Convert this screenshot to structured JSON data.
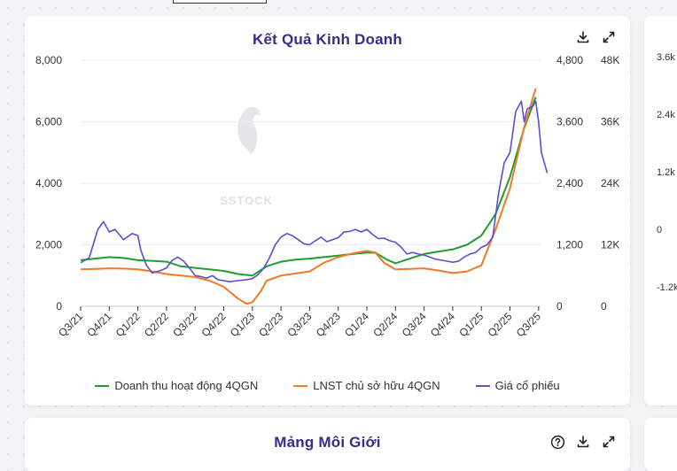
{
  "charts": {
    "main_title": "Kết Quả Kinh Doanh",
    "bottom_title": "Mảng Môi Giới"
  },
  "watermark": "SSTOCK",
  "side_axis_ticks": [
    "3.6k",
    "2.4k",
    "1.2k",
    "0",
    "-1.2k"
  ],
  "icons": {
    "download": "download-icon",
    "expand": "expand-icon",
    "help": "help-icon"
  },
  "colors": {
    "revenue": "#1e9e2e",
    "profit": "#f07a2a",
    "price": "#5a4fd0",
    "title": "#3b2a8c"
  },
  "chart_data": {
    "type": "line",
    "title": "Kết Quả Kinh Doanh",
    "x_tick_labels": [
      "Q3/21",
      "Q4/21",
      "Q1/22",
      "Q2/22",
      "Q3/22",
      "Q4/22",
      "Q1/23",
      "Q2/23",
      "Q3/23",
      "Q4/23",
      "Q1/24",
      "Q2/24",
      "Q3/24",
      "Q4/24",
      "Q1/25",
      "Q2/25",
      "Q3/25"
    ],
    "y_left": {
      "ticks": [
        "0",
        "2,000",
        "4,000",
        "6,000",
        "8,000"
      ],
      "range": [
        0,
        8000
      ]
    },
    "y_right1": {
      "ticks": [
        "0",
        "1,200",
        "2,400",
        "3,600",
        "4,800"
      ],
      "range": [
        0,
        4800
      ]
    },
    "y_right2": {
      "ticks": [
        "0",
        "12K",
        "24K",
        "36K",
        "48K"
      ],
      "range": [
        0,
        48000
      ]
    },
    "grid": true,
    "legend_position": "bottom",
    "series": [
      {
        "name": "Doanh thu hoạt động 4QGN",
        "axis": "left",
        "color": "#1e9e2e",
        "points": [
          [
            0,
            1500
          ],
          [
            0.5,
            1550
          ],
          [
            1,
            1600
          ],
          [
            1.5,
            1570
          ],
          [
            2,
            1500
          ],
          [
            2.5,
            1480
          ],
          [
            3,
            1450
          ],
          [
            3.5,
            1300
          ],
          [
            4,
            1250
          ],
          [
            4.5,
            1200
          ],
          [
            5,
            1150
          ],
          [
            5.5,
            1050
          ],
          [
            6,
            1000
          ],
          [
            6.5,
            1300
          ],
          [
            7,
            1450
          ],
          [
            7.5,
            1520
          ],
          [
            8,
            1550
          ],
          [
            8.5,
            1600
          ],
          [
            9,
            1650
          ],
          [
            9.5,
            1700
          ],
          [
            10,
            1750
          ],
          [
            10.3,
            1740
          ],
          [
            10.7,
            1520
          ],
          [
            11,
            1400
          ],
          [
            11.5,
            1550
          ],
          [
            12,
            1700
          ],
          [
            12.5,
            1780
          ],
          [
            13,
            1850
          ],
          [
            13.5,
            2000
          ],
          [
            14,
            2300
          ],
          [
            14.5,
            3000
          ],
          [
            15,
            4200
          ],
          [
            15.5,
            5800
          ],
          [
            15.9,
            6800
          ]
        ]
      },
      {
        "name": "LNST chủ sở hữu 4QGN",
        "axis": "right1",
        "color": "#f07a2a",
        "points": [
          [
            0,
            720
          ],
          [
            0.5,
            730
          ],
          [
            1,
            740
          ],
          [
            1.5,
            735
          ],
          [
            2,
            720
          ],
          [
            2.5,
            680
          ],
          [
            3,
            630
          ],
          [
            3.5,
            600
          ],
          [
            4,
            570
          ],
          [
            4.5,
            500
          ],
          [
            5,
            380
          ],
          [
            5.5,
            150
          ],
          [
            5.8,
            50
          ],
          [
            6,
            80
          ],
          [
            6.3,
            300
          ],
          [
            6.5,
            500
          ],
          [
            7,
            600
          ],
          [
            7.5,
            640
          ],
          [
            8,
            680
          ],
          [
            8.5,
            850
          ],
          [
            9,
            960
          ],
          [
            9.5,
            1030
          ],
          [
            10,
            1080
          ],
          [
            10.3,
            1050
          ],
          [
            10.6,
            850
          ],
          [
            11,
            720
          ],
          [
            11.5,
            730
          ],
          [
            12,
            740
          ],
          [
            12.5,
            700
          ],
          [
            13,
            650
          ],
          [
            13.5,
            680
          ],
          [
            14,
            800
          ],
          [
            14.5,
            1500
          ],
          [
            15,
            2300
          ],
          [
            15.5,
            3500
          ],
          [
            15.9,
            4250
          ]
        ]
      },
      {
        "name": "Giá cổ phiếu",
        "axis": "right2",
        "color": "#5a4fd0",
        "points": [
          [
            0,
            8500
          ],
          [
            0.3,
            9500
          ],
          [
            0.6,
            15000
          ],
          [
            0.8,
            16500
          ],
          [
            1,
            14500
          ],
          [
            1.2,
            15000
          ],
          [
            1.5,
            13000
          ],
          [
            1.8,
            14200
          ],
          [
            2,
            13800
          ],
          [
            2.1,
            11000
          ],
          [
            2.3,
            8000
          ],
          [
            2.5,
            6500
          ],
          [
            2.8,
            7000
          ],
          [
            3,
            7500
          ],
          [
            3.2,
            9000
          ],
          [
            3.4,
            9600
          ],
          [
            3.6,
            8800
          ],
          [
            3.8,
            7500
          ],
          [
            4,
            6000
          ],
          [
            4.2,
            5800
          ],
          [
            4.4,
            5500
          ],
          [
            4.6,
            6000
          ],
          [
            4.8,
            5200
          ],
          [
            5,
            5000
          ],
          [
            5.2,
            4800
          ],
          [
            5.5,
            5000
          ],
          [
            5.8,
            5200
          ],
          [
            6,
            5400
          ],
          [
            6.2,
            6200
          ],
          [
            6.4,
            7500
          ],
          [
            6.6,
            9500
          ],
          [
            6.8,
            12000
          ],
          [
            7,
            13500
          ],
          [
            7.2,
            14200
          ],
          [
            7.4,
            13800
          ],
          [
            7.6,
            13000
          ],
          [
            7.8,
            12200
          ],
          [
            8,
            12000
          ],
          [
            8.2,
            12800
          ],
          [
            8.4,
            13500
          ],
          [
            8.6,
            12600
          ],
          [
            8.8,
            13000
          ],
          [
            9,
            13400
          ],
          [
            9.2,
            14500
          ],
          [
            9.4,
            14600
          ],
          [
            9.6,
            15000
          ],
          [
            9.8,
            14500
          ],
          [
            10,
            15000
          ],
          [
            10.2,
            14000
          ],
          [
            10.4,
            13200
          ],
          [
            10.6,
            13300
          ],
          [
            10.8,
            12800
          ],
          [
            11,
            12500
          ],
          [
            11.2,
            11500
          ],
          [
            11.4,
            10200
          ],
          [
            11.6,
            10500
          ],
          [
            11.8,
            10200
          ],
          [
            12,
            10000
          ],
          [
            12.2,
            9600
          ],
          [
            12.4,
            9200
          ],
          [
            12.6,
            9000
          ],
          [
            12.8,
            8800
          ],
          [
            13,
            8600
          ],
          [
            13.2,
            8800
          ],
          [
            13.4,
            9600
          ],
          [
            13.6,
            10200
          ],
          [
            13.8,
            10500
          ],
          [
            14,
            11500
          ],
          [
            14.2,
            12000
          ],
          [
            14.4,
            13500
          ],
          [
            14.6,
            22000
          ],
          [
            14.8,
            28000
          ],
          [
            15,
            30000
          ],
          [
            15.2,
            38000
          ],
          [
            15.4,
            40000
          ],
          [
            15.5,
            36000
          ],
          [
            15.6,
            38500
          ],
          [
            15.8,
            39000
          ],
          [
            15.9,
            40000
          ],
          [
            16,
            36000
          ],
          [
            16.1,
            30000
          ],
          [
            16.3,
            26000
          ]
        ]
      }
    ]
  }
}
